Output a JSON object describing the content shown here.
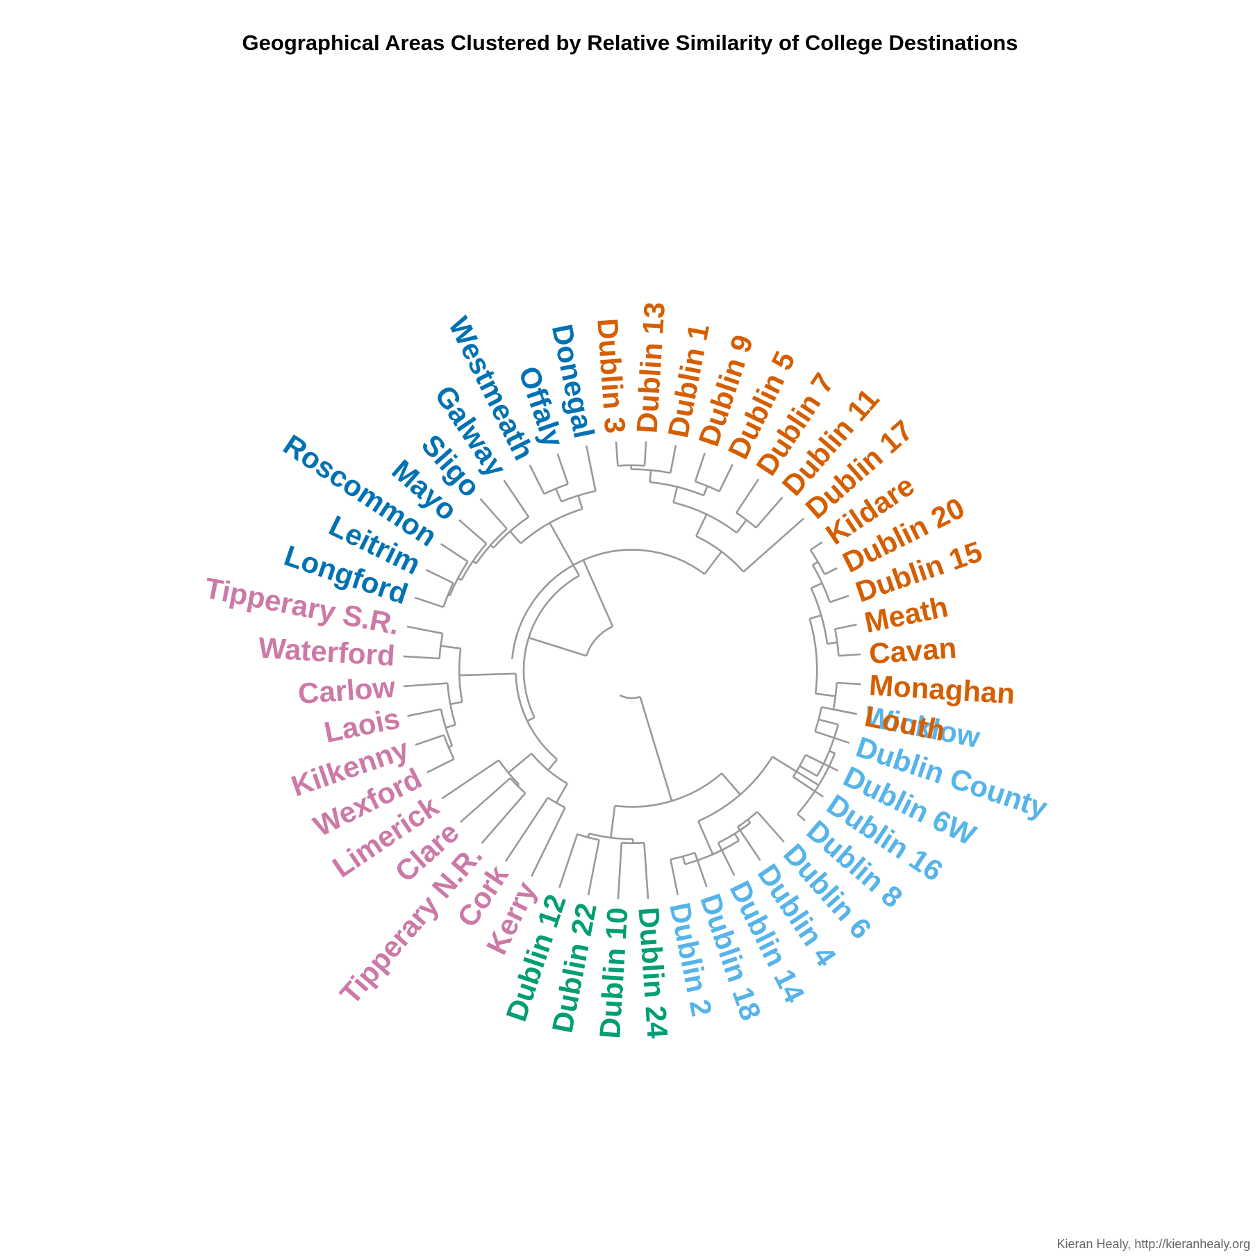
{
  "title": "Geographical Areas Clustered by Relative Similarity of College Destinations",
  "credit": "Kieran Healy, http://kieranhealy.org",
  "colors": {
    "branch": "#999999",
    "orange": "#D55E00",
    "dark_blue": "#0072B2",
    "pink": "#CC79A7",
    "green": "#009E73",
    "light_blue": "#56B4E9"
  },
  "clusters": [
    {
      "id": "orange",
      "color": "#D55E00"
    },
    {
      "id": "dark_blue",
      "color": "#0072B2"
    },
    {
      "id": "pink",
      "color": "#CC79A7"
    },
    {
      "id": "green",
      "color": "#009E73"
    },
    {
      "id": "light_blue",
      "color": "#56B4E9"
    }
  ],
  "leaves": [
    {
      "name": "Wicklow",
      "cluster": "light_blue"
    },
    {
      "name": "Dublin County",
      "cluster": "light_blue"
    },
    {
      "name": "Dublin 6W",
      "cluster": "light_blue"
    },
    {
      "name": "Dublin 16",
      "cluster": "light_blue"
    },
    {
      "name": "Dublin 8",
      "cluster": "light_blue"
    },
    {
      "name": "Dublin 6",
      "cluster": "light_blue"
    },
    {
      "name": "Dublin 4",
      "cluster": "light_blue"
    },
    {
      "name": "Dublin 14",
      "cluster": "light_blue"
    },
    {
      "name": "Dublin 18",
      "cluster": "light_blue"
    },
    {
      "name": "Dublin 2",
      "cluster": "light_blue"
    },
    {
      "name": "Dublin 24",
      "cluster": "green"
    },
    {
      "name": "Dublin 10",
      "cluster": "green"
    },
    {
      "name": "Dublin 22",
      "cluster": "green"
    },
    {
      "name": "Dublin 12",
      "cluster": "green"
    },
    {
      "name": "Kerry",
      "cluster": "pink"
    },
    {
      "name": "Cork",
      "cluster": "pink"
    },
    {
      "name": "Tipperary N.R.",
      "cluster": "pink"
    },
    {
      "name": "Clare",
      "cluster": "pink"
    },
    {
      "name": "Limerick",
      "cluster": "pink"
    },
    {
      "name": "Wexford",
      "cluster": "pink"
    },
    {
      "name": "Kilkenny",
      "cluster": "pink"
    },
    {
      "name": "Laois",
      "cluster": "pink"
    },
    {
      "name": "Carlow",
      "cluster": "pink"
    },
    {
      "name": "Waterford",
      "cluster": "pink"
    },
    {
      "name": "Tipperary S.R.",
      "cluster": "pink"
    },
    {
      "name": "Longford",
      "cluster": "dark_blue"
    },
    {
      "name": "Leitrim",
      "cluster": "dark_blue"
    },
    {
      "name": "Roscommon",
      "cluster": "dark_blue"
    },
    {
      "name": "Mayo",
      "cluster": "dark_blue"
    },
    {
      "name": "Sligo",
      "cluster": "dark_blue"
    },
    {
      "name": "Galway",
      "cluster": "dark_blue"
    },
    {
      "name": "Westmeath",
      "cluster": "dark_blue"
    },
    {
      "name": "Offaly",
      "cluster": "dark_blue"
    },
    {
      "name": "Donegal",
      "cluster": "dark_blue"
    },
    {
      "name": "Dublin 3",
      "cluster": "orange"
    },
    {
      "name": "Dublin 13",
      "cluster": "orange"
    },
    {
      "name": "Dublin 1",
      "cluster": "orange"
    },
    {
      "name": "Dublin 9",
      "cluster": "orange"
    },
    {
      "name": "Dublin 5",
      "cluster": "orange"
    },
    {
      "name": "Dublin 7",
      "cluster": "orange"
    },
    {
      "name": "Dublin 11",
      "cluster": "orange"
    },
    {
      "name": "Dublin 17",
      "cluster": "orange"
    },
    {
      "name": "Kildare",
      "cluster": "orange"
    },
    {
      "name": "Dublin 20",
      "cluster": "orange"
    },
    {
      "name": "Dublin 15",
      "cluster": "orange"
    },
    {
      "name": "Meath",
      "cluster": "orange"
    },
    {
      "name": "Cavan",
      "cluster": "orange"
    },
    {
      "name": "Monaghan",
      "cluster": "orange"
    },
    {
      "name": "Louth",
      "cluster": "orange"
    }
  ]
}
